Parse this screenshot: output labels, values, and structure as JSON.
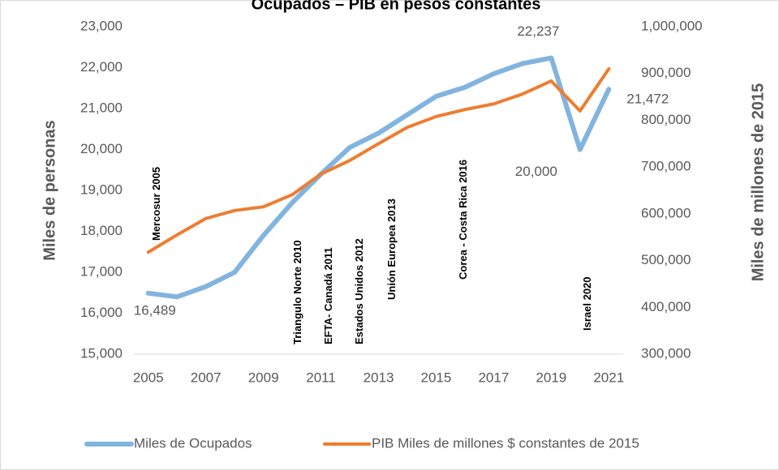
{
  "chart_data": {
    "type": "line",
    "title": "Ocupados – PIB en pesos constantes",
    "y_label": "Miles de personas",
    "y2_label": "Miles de millones de 2015",
    "x": [
      2005,
      2006,
      2007,
      2008,
      2009,
      2010,
      2011,
      2012,
      2013,
      2014,
      2015,
      2016,
      2017,
      2018,
      2019,
      2020,
      2021
    ],
    "xlim": [
      2004.5,
      2021.5
    ],
    "xticks": [
      2005,
      2007,
      2009,
      2011,
      2013,
      2015,
      2017,
      2019,
      2021
    ],
    "ylim": [
      15000,
      23000
    ],
    "yticks": [
      {
        "value": 15000,
        "label": "15,000"
      },
      {
        "value": 16000,
        "label": "16,000"
      },
      {
        "value": 17000,
        "label": "17,000"
      },
      {
        "value": 18000,
        "label": "18,000"
      },
      {
        "value": 19000,
        "label": "19,000"
      },
      {
        "value": 20000,
        "label": "20,000"
      },
      {
        "value": 21000,
        "label": "21,000"
      },
      {
        "value": 22000,
        "label": "22,000"
      },
      {
        "value": 23000,
        "label": "23,000"
      }
    ],
    "y2lim": [
      300000,
      1000000
    ],
    "y2ticks": [
      {
        "value": 300000,
        "label": "300,000"
      },
      {
        "value": 400000,
        "label": "400,000"
      },
      {
        "value": 500000,
        "label": "500,000"
      },
      {
        "value": 600000,
        "label": "600,000"
      },
      {
        "value": 700000,
        "label": "700,000"
      },
      {
        "value": 800000,
        "label": "800,000"
      },
      {
        "value": 900000,
        "label": "900,000"
      },
      {
        "value": 1000000,
        "label": "1,000,000"
      }
    ],
    "grid": false,
    "legend": "bottom",
    "series": [
      {
        "name": "Miles de Ocupados",
        "color": "#82b4e0",
        "axis": "y",
        "values": [
          16489,
          16400,
          16650,
          17000,
          17900,
          18700,
          19400,
          20050,
          20400,
          20850,
          21300,
          21520,
          21850,
          22100,
          22237,
          20000,
          21472
        ],
        "value_labels": [
          "16,489",
          null,
          null,
          null,
          null,
          null,
          null,
          null,
          null,
          null,
          null,
          null,
          null,
          null,
          "22,237",
          "20,000",
          "21,472"
        ]
      },
      {
        "name": "PIB Miles de millones $ constantes de 2015",
        "color": "#ed7d31",
        "axis": "y2",
        "values": [
          518000,
          555000,
          590000,
          607000,
          615000,
          641000,
          685000,
          714000,
          750000,
          785000,
          808000,
          823000,
          835000,
          856000,
          884000,
          820000,
          910000
        ]
      }
    ],
    "annotations": [
      "Mercosur  2005",
      "Triangulo Norte  2010",
      "EFTA- Canadá  2011",
      "Estados Unidos  2012",
      "Unión Europea  2013",
      "Corea - Costa Rica  2016",
      "Israel  2020"
    ]
  }
}
